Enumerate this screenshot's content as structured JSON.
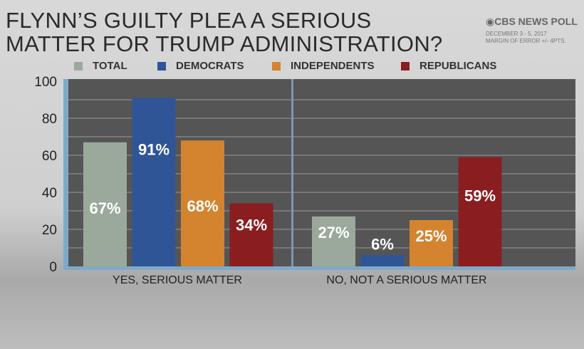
{
  "title_lines": [
    "FLYNN’S GUILTY PLEA A SERIOUS",
    "MATTER FOR TRUMP ADMINISTRATION?"
  ],
  "brand": "CBS NEWS POLL",
  "date": "DECEMBER 3 - 5, 2017",
  "margin": "MARGIN OF ERROR +/- 4PTS.",
  "chart_data": {
    "type": "bar",
    "categories": [
      "YES, SERIOUS MATTER",
      "NO, NOT A SERIOUS MATTER"
    ],
    "series": [
      {
        "name": "TOTAL",
        "color": "#9aa99c",
        "values": [
          67,
          27
        ]
      },
      {
        "name": "DEMOCRATS",
        "color": "#2f5597",
        "values": [
          91,
          6
        ]
      },
      {
        "name": "INDEPENDENTS",
        "color": "#d4832f",
        "values": [
          68,
          25
        ]
      },
      {
        "name": "REPUBLICANS",
        "color": "#8a1d20",
        "values": [
          34,
          59
        ]
      }
    ],
    "yticks": [
      0,
      20,
      40,
      60,
      80,
      100
    ],
    "ylim": [
      0,
      100
    ],
    "grid": true,
    "legend": "top",
    "data_label_suffix": "%"
  }
}
